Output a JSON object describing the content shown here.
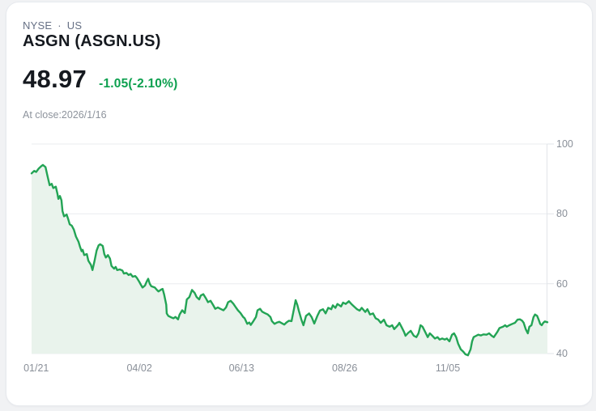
{
  "card": {
    "exchange": "NYSE",
    "separator": "·",
    "region": "US",
    "symbol_title": "ASGN (ASGN.US)",
    "price": "48.97",
    "change": "-1.05(-2.10%)",
    "at_close": "At close:2026/1/16"
  },
  "colors": {
    "page_bg": "#f1f2f4",
    "card_border": "#e7eaee",
    "text_primary": "#15191f",
    "text_secondary": "#667085",
    "text_muted": "#8d939c",
    "text_axis": "#898f98",
    "green_text": "#0da04f",
    "green_line": "#23a455",
    "area_fill": "#e9f3ec",
    "grid": "#eaecef",
    "axis": "#e2e5e9"
  },
  "chart_data": {
    "type": "area",
    "ylim": [
      40,
      100
    ],
    "y_ticks": [
      100,
      80,
      60,
      40
    ],
    "y_tick_labels": [
      "100",
      "80",
      "60",
      "40"
    ],
    "x_tick_labels": [
      "01/21",
      "04/02",
      "06/13",
      "08/26",
      "11/05"
    ],
    "x_tick_positions": [
      0.009,
      0.209,
      0.407,
      0.607,
      0.807
    ],
    "grid": "horizontal",
    "legend": "none",
    "last_close": 48.97,
    "points": [
      [
        0.0,
        91.6
      ],
      [
        0.005,
        92.3
      ],
      [
        0.009,
        92.0
      ],
      [
        0.014,
        93.0
      ],
      [
        0.019,
        93.7
      ],
      [
        0.022,
        94.0
      ],
      [
        0.027,
        93.4
      ],
      [
        0.031,
        90.8
      ],
      [
        0.035,
        88.2
      ],
      [
        0.039,
        88.6
      ],
      [
        0.042,
        87.4
      ],
      [
        0.047,
        87.8
      ],
      [
        0.05,
        85.8
      ],
      [
        0.052,
        84.3
      ],
      [
        0.055,
        85.1
      ],
      [
        0.058,
        83.9
      ],
      [
        0.06,
        80.8
      ],
      [
        0.063,
        79.3
      ],
      [
        0.068,
        79.8
      ],
      [
        0.071,
        78.5
      ],
      [
        0.074,
        77.0
      ],
      [
        0.078,
        76.6
      ],
      [
        0.082,
        75.5
      ],
      [
        0.086,
        73.5
      ],
      [
        0.091,
        72.0
      ],
      [
        0.094,
        70.5
      ],
      [
        0.097,
        69.3
      ],
      [
        0.099,
        69.7
      ],
      [
        0.102,
        68.2
      ],
      [
        0.107,
        68.5
      ],
      [
        0.11,
        66.6
      ],
      [
        0.115,
        65.4
      ],
      [
        0.118,
        63.9
      ],
      [
        0.122,
        66.5
      ],
      [
        0.126,
        69.5
      ],
      [
        0.13,
        71.0
      ],
      [
        0.133,
        71.3
      ],
      [
        0.138,
        70.8
      ],
      [
        0.141,
        68.5
      ],
      [
        0.144,
        67.5
      ],
      [
        0.148,
        68.2
      ],
      [
        0.152,
        67.2
      ],
      [
        0.155,
        65.1
      ],
      [
        0.16,
        64.3
      ],
      [
        0.163,
        64.8
      ],
      [
        0.166,
        63.9
      ],
      [
        0.171,
        64.1
      ],
      [
        0.176,
        63.8
      ],
      [
        0.179,
        62.9
      ],
      [
        0.184,
        63.1
      ],
      [
        0.188,
        62.5
      ],
      [
        0.192,
        62.8
      ],
      [
        0.196,
        62.0
      ],
      [
        0.201,
        62.2
      ],
      [
        0.204,
        61.7
      ],
      [
        0.209,
        60.5
      ],
      [
        0.212,
        59.7
      ],
      [
        0.215,
        58.9
      ],
      [
        0.22,
        59.5
      ],
      [
        0.223,
        60.6
      ],
      [
        0.226,
        61.4
      ],
      [
        0.229,
        60.0
      ],
      [
        0.232,
        59.3
      ],
      [
        0.239,
        58.9
      ],
      [
        0.243,
        58.2
      ],
      [
        0.246,
        57.8
      ],
      [
        0.251,
        58.3
      ],
      [
        0.254,
        58.5
      ],
      [
        0.257,
        56.9
      ],
      [
        0.261,
        54.0
      ],
      [
        0.262,
        51.5
      ],
      [
        0.265,
        50.8
      ],
      [
        0.27,
        50.4
      ],
      [
        0.275,
        50.1
      ],
      [
        0.279,
        50.5
      ],
      [
        0.284,
        49.8
      ],
      [
        0.287,
        51.2
      ],
      [
        0.292,
        52.4
      ],
      [
        0.297,
        51.6
      ],
      [
        0.301,
        55.5
      ],
      [
        0.306,
        56.2
      ],
      [
        0.311,
        58.2
      ],
      [
        0.316,
        57.4
      ],
      [
        0.32,
        56.2
      ],
      [
        0.325,
        55.5
      ],
      [
        0.328,
        56.6
      ],
      [
        0.333,
        57.0
      ],
      [
        0.338,
        55.8
      ],
      [
        0.342,
        54.7
      ],
      [
        0.347,
        55.1
      ],
      [
        0.352,
        53.9
      ],
      [
        0.356,
        52.8
      ],
      [
        0.361,
        53.2
      ],
      [
        0.366,
        52.8
      ],
      [
        0.372,
        52.4
      ],
      [
        0.377,
        53.2
      ],
      [
        0.381,
        54.7
      ],
      [
        0.386,
        55.1
      ],
      [
        0.391,
        54.3
      ],
      [
        0.396,
        53.2
      ],
      [
        0.4,
        52.4
      ],
      [
        0.405,
        51.6
      ],
      [
        0.41,
        50.5
      ],
      [
        0.413,
        50.1
      ],
      [
        0.418,
        48.5
      ],
      [
        0.422,
        48.9
      ],
      [
        0.425,
        48.2
      ],
      [
        0.43,
        49.3
      ],
      [
        0.435,
        50.5
      ],
      [
        0.438,
        52.4
      ],
      [
        0.443,
        52.8
      ],
      [
        0.447,
        52.0
      ],
      [
        0.452,
        51.6
      ],
      [
        0.458,
        51.2
      ],
      [
        0.463,
        50.5
      ],
      [
        0.466,
        49.3
      ],
      [
        0.471,
        48.5
      ],
      [
        0.476,
        48.9
      ],
      [
        0.48,
        49.1
      ],
      [
        0.485,
        48.7
      ],
      [
        0.49,
        48.3
      ],
      [
        0.494,
        48.9
      ],
      [
        0.499,
        49.4
      ],
      [
        0.504,
        49.3
      ],
      [
        0.509,
        53.0
      ],
      [
        0.512,
        55.3
      ],
      [
        0.515,
        54.0
      ],
      [
        0.518,
        52.3
      ],
      [
        0.523,
        49.7
      ],
      [
        0.527,
        48.1
      ],
      [
        0.532,
        50.8
      ],
      [
        0.538,
        51.5
      ],
      [
        0.543,
        50.4
      ],
      [
        0.548,
        48.6
      ],
      [
        0.554,
        50.8
      ],
      [
        0.559,
        52.3
      ],
      [
        0.565,
        52.7
      ],
      [
        0.57,
        51.5
      ],
      [
        0.575,
        53.1
      ],
      [
        0.581,
        52.7
      ],
      [
        0.584,
        53.8
      ],
      [
        0.589,
        53.1
      ],
      [
        0.593,
        54.2
      ],
      [
        0.6,
        53.5
      ],
      [
        0.604,
        54.6
      ],
      [
        0.609,
        54.2
      ],
      [
        0.615,
        55.0
      ],
      [
        0.62,
        54.2
      ],
      [
        0.625,
        53.5
      ],
      [
        0.631,
        52.7
      ],
      [
        0.636,
        52.3
      ],
      [
        0.64,
        53.1
      ],
      [
        0.647,
        51.9
      ],
      [
        0.651,
        52.7
      ],
      [
        0.656,
        51.2
      ],
      [
        0.662,
        51.5
      ],
      [
        0.667,
        50.1
      ],
      [
        0.672,
        49.7
      ],
      [
        0.677,
        48.8
      ],
      [
        0.683,
        49.7
      ],
      [
        0.688,
        48.1
      ],
      [
        0.694,
        47.7
      ],
      [
        0.699,
        48.1
      ],
      [
        0.703,
        47.0
      ],
      [
        0.71,
        48.1
      ],
      [
        0.713,
        48.8
      ],
      [
        0.717,
        47.7
      ],
      [
        0.722,
        46.2
      ],
      [
        0.725,
        45.1
      ],
      [
        0.73,
        45.9
      ],
      [
        0.735,
        46.5
      ],
      [
        0.741,
        45.1
      ],
      [
        0.746,
        44.7
      ],
      [
        0.75,
        45.8
      ],
      [
        0.754,
        48.1
      ],
      [
        0.758,
        47.7
      ],
      [
        0.763,
        46.2
      ],
      [
        0.768,
        44.7
      ],
      [
        0.772,
        45.8
      ],
      [
        0.777,
        45.1
      ],
      [
        0.782,
        44.3
      ],
      [
        0.787,
        44.7
      ],
      [
        0.791,
        44.0
      ],
      [
        0.796,
        44.3
      ],
      [
        0.801,
        44.0
      ],
      [
        0.805,
        44.3
      ],
      [
        0.81,
        43.5
      ],
      [
        0.815,
        45.4
      ],
      [
        0.819,
        45.8
      ],
      [
        0.823,
        44.7
      ],
      [
        0.827,
        42.8
      ],
      [
        0.832,
        41.2
      ],
      [
        0.837,
        40.5
      ],
      [
        0.841,
        39.8
      ],
      [
        0.846,
        39.5
      ],
      [
        0.851,
        41.2
      ],
      [
        0.854,
        43.5
      ],
      [
        0.857,
        44.7
      ],
      [
        0.862,
        45.1
      ],
      [
        0.866,
        45.4
      ],
      [
        0.871,
        45.2
      ],
      [
        0.876,
        45.5
      ],
      [
        0.882,
        45.4
      ],
      [
        0.887,
        45.8
      ],
      [
        0.892,
        45.1
      ],
      [
        0.896,
        44.7
      ],
      [
        0.903,
        46.2
      ],
      [
        0.907,
        47.3
      ],
      [
        0.914,
        47.7
      ],
      [
        0.918,
        48.1
      ],
      [
        0.921,
        47.7
      ],
      [
        0.926,
        48.1
      ],
      [
        0.932,
        48.5
      ],
      [
        0.937,
        48.8
      ],
      [
        0.942,
        49.7
      ],
      [
        0.947,
        49.8
      ],
      [
        0.951,
        49.4
      ],
      [
        0.954,
        48.8
      ],
      [
        0.958,
        47.0
      ],
      [
        0.962,
        45.8
      ],
      [
        0.965,
        47.7
      ],
      [
        0.969,
        48.1
      ],
      [
        0.973,
        50.4
      ],
      [
        0.976,
        51.2
      ],
      [
        0.98,
        50.8
      ],
      [
        0.983,
        49.7
      ],
      [
        0.986,
        48.5
      ],
      [
        0.989,
        48.1
      ],
      [
        0.992,
        48.8
      ],
      [
        0.995,
        49.2
      ],
      [
        1.0,
        48.97
      ]
    ]
  }
}
